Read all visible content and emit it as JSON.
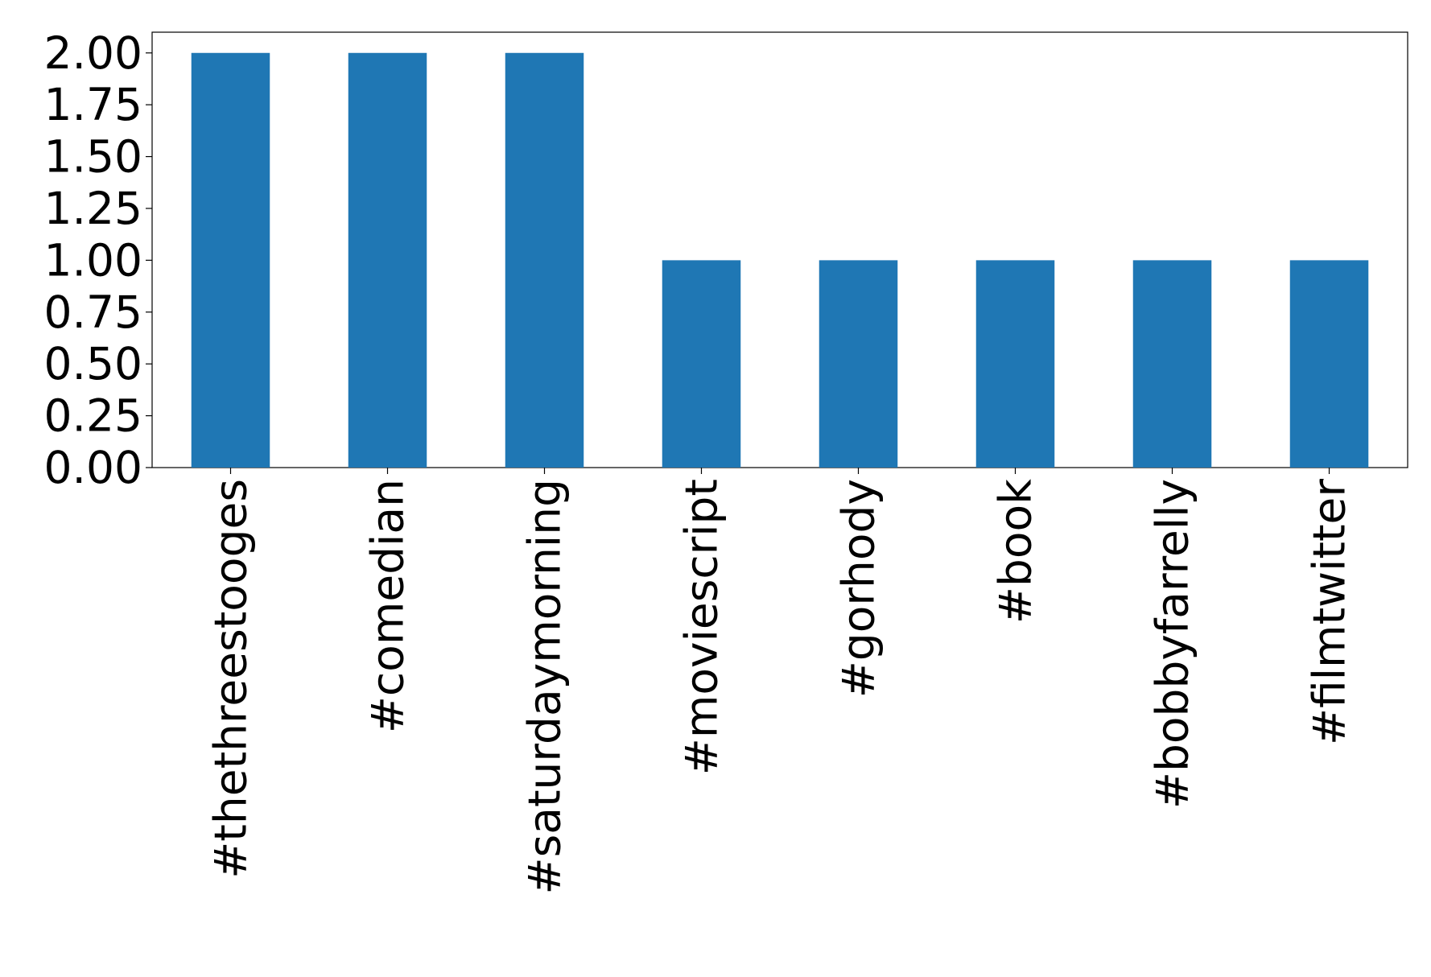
{
  "chart_data": {
    "type": "bar",
    "categories": [
      "#thethreestooges",
      "#comedian",
      "#saturdaymorning",
      "#moviescript",
      "#gorhody",
      "#book",
      "#bobbyfarrelly",
      "#filmtwitter"
    ],
    "values": [
      2,
      2,
      2,
      1,
      1,
      1,
      1,
      1
    ],
    "color": "#1f77b4",
    "ylim": [
      0,
      2.1
    ],
    "yticks": [
      {
        "value": 0,
        "label": "0.00"
      },
      {
        "value": 0.25,
        "label": "0.25"
      },
      {
        "value": 0.5,
        "label": "0.50"
      },
      {
        "value": 0.75,
        "label": "0.75"
      },
      {
        "value": 1,
        "label": "1.00"
      },
      {
        "value": 1.25,
        "label": "1.25"
      },
      {
        "value": 1.5,
        "label": "1.50"
      },
      {
        "value": 1.75,
        "label": "1.75"
      },
      {
        "value": 2,
        "label": "2.00"
      }
    ],
    "grid": false
  }
}
